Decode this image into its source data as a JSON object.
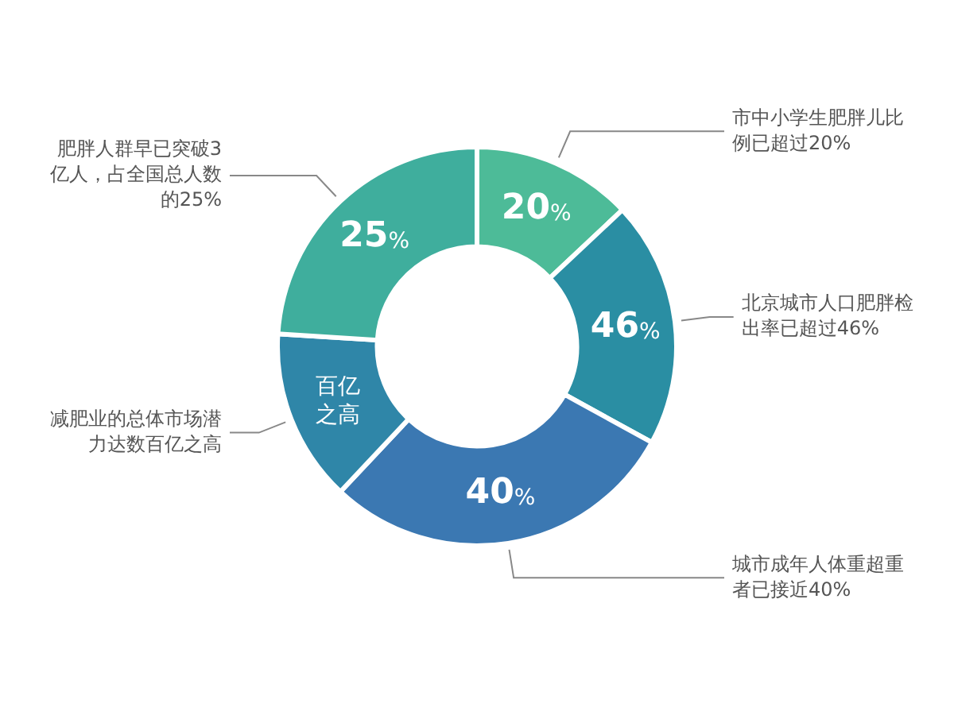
{
  "chart_data": {
    "type": "donut",
    "categories": [
      "市中小学生肥胖儿比例已超过20%",
      "北京城市人口肥胖检出率已超过46%",
      "城市成年人体重超重者已接近40%",
      "减肥业的总体市场潜力达数百亿之高",
      "肥胖人群早已突破3亿人，占全国总人数的25%"
    ],
    "values": [
      13,
      20,
      29,
      14,
      24
    ],
    "colors": [
      "#4dbb98",
      "#2a8ea3",
      "#3b78b2",
      "#2f86a8",
      "#3fae9d"
    ],
    "annotations": [
      "20%",
      "46%",
      "40%",
      "百亿之高",
      "25%"
    ],
    "legend": false
  }
}
